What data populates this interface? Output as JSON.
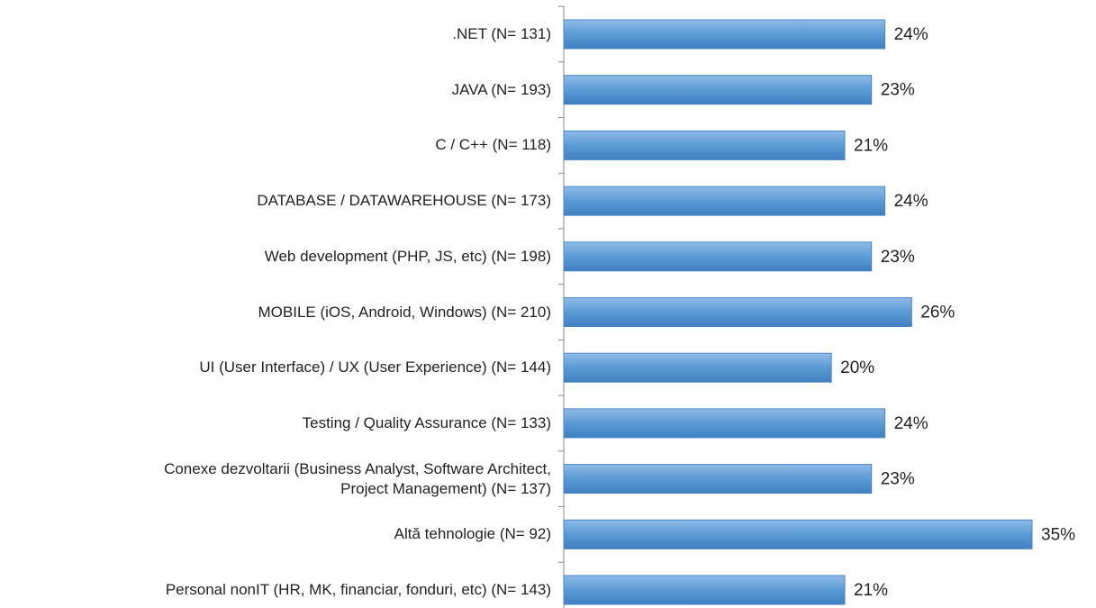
{
  "chart_data": {
    "type": "barh",
    "categories": [
      ".NET (N= 131)",
      "JAVA (N= 193)",
      "C / C++ (N= 118)",
      "DATABASE / DATAWAREHOUSE (N= 173)",
      "Web development (PHP, JS, etc) (N= 198)",
      "MOBILE (iOS, Android, Windows) (N= 210)",
      "UI (User Interface) / UX (User Experience) (N= 144)",
      "Testing / Quality Assurance (N= 133)",
      "Conexe dezvoltarii (Business Analyst, Software Architect,\nProject Management) (N= 137)",
      "Altă tehnologie (N= 92)",
      "Personal nonIT (HR, MK, financiar, fonduri, etc) (N= 143)"
    ],
    "values": [
      24,
      23,
      21,
      24,
      23,
      26,
      20,
      24,
      23,
      35,
      21
    ],
    "value_labels": [
      "24%",
      "23%",
      "21%",
      "24%",
      "23%",
      "26%",
      "20%",
      "24%",
      "23%",
      "35%",
      "21%"
    ],
    "color": "#5b9bd5"
  }
}
